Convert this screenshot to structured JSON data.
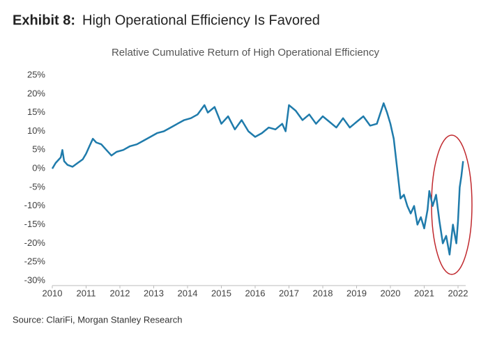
{
  "header": {
    "exhibit": "Exhibit 8:",
    "title": "High Operational Efficiency Is Favored"
  },
  "chart_data": {
    "type": "line",
    "title": "Relative Cumulative Return of High Operational Efficiency",
    "x": [
      2010.0,
      2010.1,
      2010.25,
      2010.3,
      2010.35,
      2010.45,
      2010.6,
      2010.75,
      2010.9,
      2011.0,
      2011.1,
      2011.2,
      2011.3,
      2011.45,
      2011.6,
      2011.75,
      2011.9,
      2012.1,
      2012.3,
      2012.5,
      2012.7,
      2012.9,
      2013.1,
      2013.3,
      2013.5,
      2013.7,
      2013.9,
      2014.1,
      2014.3,
      2014.5,
      2014.6,
      2014.8,
      2015.0,
      2015.2,
      2015.4,
      2015.6,
      2015.8,
      2016.0,
      2016.2,
      2016.4,
      2016.6,
      2016.8,
      2016.9,
      2017.0,
      2017.2,
      2017.4,
      2017.6,
      2017.8,
      2018.0,
      2018.2,
      2018.4,
      2018.6,
      2018.8,
      2019.0,
      2019.2,
      2019.4,
      2019.6,
      2019.8,
      2019.9,
      2020.0,
      2020.1,
      2020.2,
      2020.3,
      2020.4,
      2020.5,
      2020.6,
      2020.7,
      2020.8,
      2020.9,
      2021.0,
      2021.1,
      2021.15,
      2021.25,
      2021.35,
      2021.45,
      2021.55,
      2021.65,
      2021.75,
      2021.85,
      2021.95,
      2022.0,
      2022.05,
      2022.1,
      2022.15
    ],
    "series": [
      {
        "name": "Relative Cumulative Return",
        "color": "#1f7bab",
        "values": [
          0,
          1.5,
          3,
          5,
          2,
          1,
          0.5,
          1.5,
          2.5,
          4,
          6,
          8,
          7,
          6.5,
          5,
          3.5,
          4.5,
          5,
          6,
          6.5,
          7.5,
          8.5,
          9.5,
          10,
          11,
          12,
          13,
          13.5,
          14.5,
          17,
          15,
          16.5,
          12,
          14,
          10.5,
          13,
          10,
          8.5,
          9.5,
          11,
          10.5,
          12,
          10,
          17,
          15.5,
          13,
          14.5,
          12,
          14,
          12.5,
          11,
          13.5,
          11,
          12.5,
          14,
          11.5,
          12,
          17.5,
          15,
          12,
          8,
          0,
          -8,
          -7,
          -10,
          -12,
          -10,
          -15,
          -13,
          -16,
          -11,
          -6,
          -10,
          -7,
          -14,
          -20,
          -18,
          -23,
          -15,
          -20,
          -14,
          -5,
          -2,
          2
        ]
      }
    ],
    "xlim": [
      2010,
      2022.3
    ],
    "xticks": [
      2010,
      2011,
      2012,
      2013,
      2014,
      2015,
      2016,
      2017,
      2018,
      2019,
      2020,
      2021,
      2022
    ],
    "ylim": [
      -30,
      25
    ],
    "yticks": [
      {
        "value": 25,
        "label": "25%"
      },
      {
        "value": 20,
        "label": "20%"
      },
      {
        "value": 15,
        "label": "15%"
      },
      {
        "value": 10,
        "label": "10%"
      },
      {
        "value": 5,
        "label": "5%"
      },
      {
        "value": 0,
        "label": "0%"
      },
      {
        "value": -5,
        "label": "-5%"
      },
      {
        "value": -10,
        "label": "-10%"
      },
      {
        "value": -15,
        "label": "-15%"
      },
      {
        "value": -20,
        "label": "-20%"
      },
      {
        "value": -25,
        "label": "-25%"
      },
      {
        "value": -30,
        "label": "-30%"
      }
    ],
    "grid": false
  },
  "source": "Source: ClariFi, Morgan Stanley Research"
}
